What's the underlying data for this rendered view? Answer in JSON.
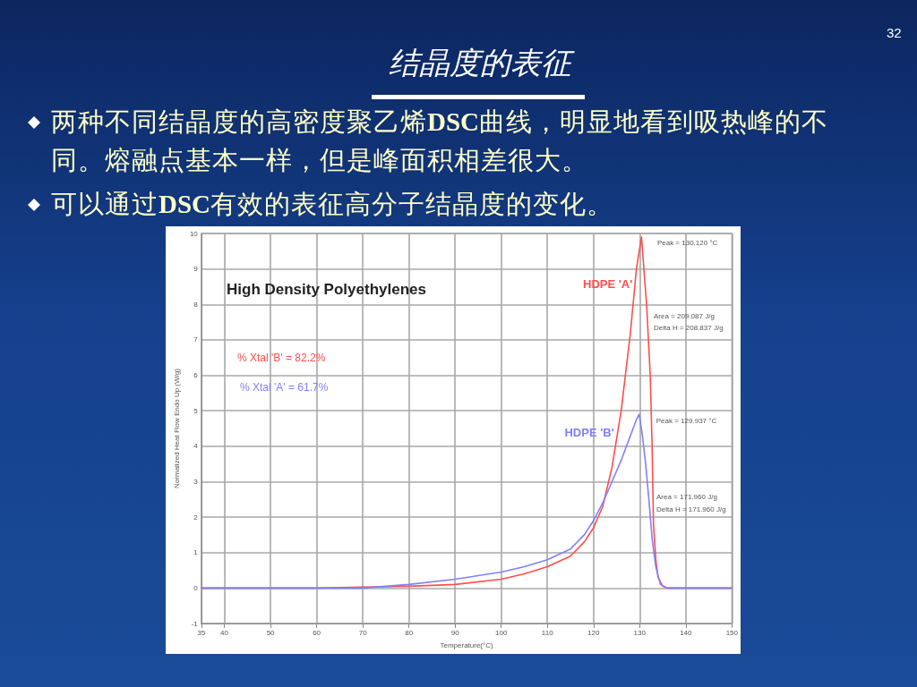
{
  "chart_data": {
    "type": "line",
    "title": "结晶度的表征",
    "subtitle": "High Density Polyethylenes",
    "xlabel": "Temperature(°C)",
    "ylabel": "Normalized Heat Flow Endo Up (W/g)",
    "series": [
      {
        "name": "HDPE 'A'",
        "color": "#ff4d4d",
        "x": [
          35,
          60,
          80,
          90,
          100,
          105,
          110,
          115,
          118,
          120,
          122,
          124,
          126,
          128,
          129.3,
          130.4,
          131.5,
          132.3,
          132.7,
          133,
          133.5,
          134,
          135,
          136,
          150
        ],
        "values": [
          0,
          0,
          0.05,
          0.1,
          0.25,
          0.4,
          0.6,
          0.9,
          1.3,
          1.7,
          2.3,
          3.4,
          5.0,
          7.2,
          9.0,
          9.9,
          8.0,
          6.0,
          4.0,
          1.8,
          0.8,
          0.3,
          0.05,
          0,
          0
        ]
      },
      {
        "name": "HDPE 'B'",
        "color": "#8080ff",
        "x": [
          35,
          70,
          80,
          90,
          100,
          105,
          110,
          115,
          118,
          120,
          122,
          124,
          126,
          128,
          129.3,
          129.9,
          130.6,
          131.3,
          132,
          132.7,
          133.5,
          134.5,
          136,
          150
        ],
        "values": [
          0,
          0,
          0.1,
          0.25,
          0.45,
          0.6,
          0.8,
          1.1,
          1.5,
          1.9,
          2.4,
          3.0,
          3.6,
          4.3,
          4.75,
          4.9,
          4.3,
          3.5,
          2.5,
          1.4,
          0.6,
          0.1,
          0,
          0
        ]
      }
    ],
    "xlim": [
      35,
      150
    ],
    "xticks": [
      35,
      40,
      50,
      60,
      70,
      80,
      90,
      100,
      110,
      120,
      130,
      140,
      150
    ],
    "ylim": [
      -1,
      10
    ],
    "yticks": [
      -1,
      0,
      1,
      2,
      3,
      4,
      5,
      6,
      7,
      8,
      9,
      10
    ],
    "grid": true,
    "marker": "none",
    "line_style": "solid",
    "annotations": [
      "两种不同结晶度的高密度聚乙烯DSC曲线，明显地看到吸热峰的不同。熔融点基本一样，但是峰面积相差很大。",
      "可以通过DSC有效的表征高分子结晶度的变化。",
      "32",
      "% Xtal 'B' = 82.2%",
      "% Xtal 'A' = 61.7%",
      {
        "text": "Peak = 130.120 °C",
        "x": 130.12,
        "y": 9.9
      },
      "Area = 209.087 J/g",
      "Delta H = 208.837 J/g",
      {
        "text": "Peak = 129.937 °C",
        "x": 129.9,
        "y": 4.9
      },
      "Area = 171.960 J/g",
      "Delta H = 171.960 J/g"
    ]
  }
}
